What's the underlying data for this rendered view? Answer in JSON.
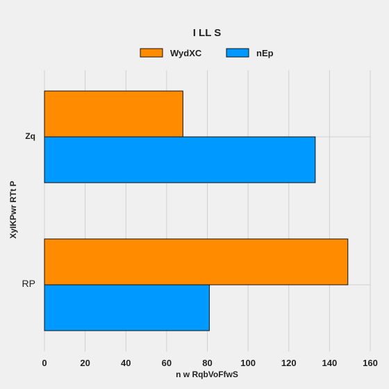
{
  "chart_data": {
    "type": "bar",
    "orientation": "horizontal",
    "title": "I LL S",
    "xlabel": "n w RqbVoFfwS",
    "ylabel": "XyIKPwr RTt  P",
    "categories": [
      "Zq",
      "RP"
    ],
    "series": [
      {
        "name": "WydXC",
        "color": "#ff8c00",
        "values": [
          68,
          149
        ]
      },
      {
        "name": "nEp",
        "color": "#0099ff",
        "values": [
          133,
          81
        ]
      }
    ],
    "xlim": [
      0,
      160
    ],
    "xticks": [
      "0",
      "20",
      "40",
      "60",
      "80",
      "100",
      "120",
      "140",
      "160"
    ],
    "grid": true,
    "legend_position": "top-center"
  }
}
